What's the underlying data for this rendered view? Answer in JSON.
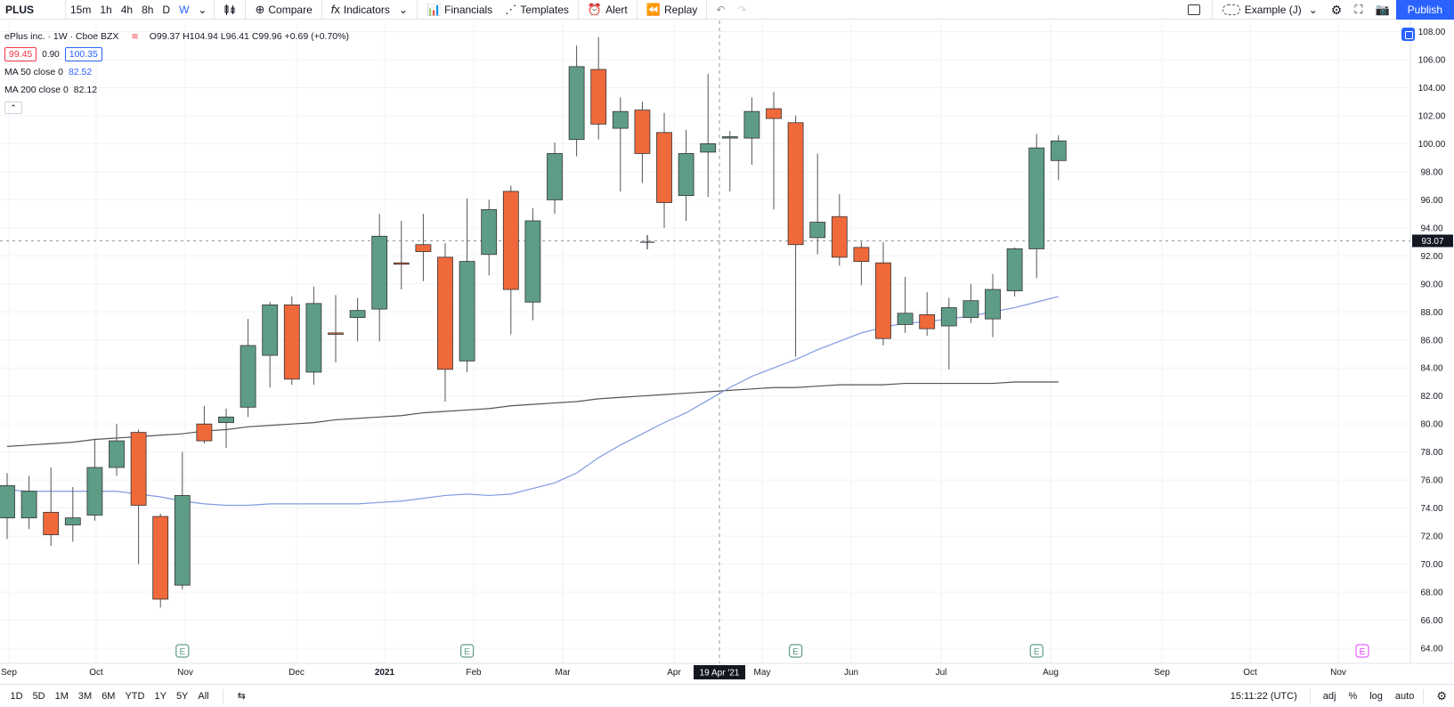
{
  "toolbar": {
    "symbol": "PLUS",
    "timeframes": [
      {
        "label": "15m",
        "active": false
      },
      {
        "label": "1h",
        "active": false
      },
      {
        "label": "4h",
        "active": false
      },
      {
        "label": "8h",
        "active": false
      },
      {
        "label": "D",
        "active": false
      },
      {
        "label": "W",
        "active": true
      }
    ],
    "compare_label": "Compare",
    "indicators_label": "Indicators",
    "financials_label": "Financials",
    "templates_label": "Templates",
    "alert_label": "Alert",
    "replay_label": "Replay",
    "layout_name": "Example (J)",
    "publish_label": "Publish"
  },
  "legend": {
    "title": "ePlus inc. · 1W · Cboe BZX",
    "ohlc_o": "O99.37",
    "ohlc_h": "H104.94",
    "ohlc_l": "L96.41",
    "ohlc_c": "C99.96",
    "change": "+0.69 (+0.70%)",
    "sell_price": "99.45",
    "spread": "0.90",
    "buy_price": "100.35",
    "ma50_label": "MA 50 close 0",
    "ma50_value": "82.52",
    "ma200_label": "MA 200 close 0",
    "ma200_value": "82.12",
    "collapse_icon": "chevron-up-icon"
  },
  "price_axis": {
    "labels": [
      "108.00",
      "106.00",
      "104.00",
      "102.00",
      "100.00",
      "98.00",
      "96.00",
      "94.00",
      "92.00",
      "90.00",
      "88.00",
      "86.00",
      "84.00",
      "82.00",
      "80.00",
      "78.00",
      "76.00",
      "74.00",
      "72.00",
      "70.00",
      "68.00",
      "66.00",
      "64.00"
    ],
    "current_price": "93.07"
  },
  "time_axis": {
    "labels": [
      "Sep",
      "Oct",
      "Nov",
      "Dec",
      "2021",
      "Feb",
      "Mar",
      "Apr",
      "May",
      "Jun",
      "Jul",
      "Aug",
      "Sep",
      "Oct",
      "Nov"
    ],
    "crosshair_label": "19 Apr '21"
  },
  "chart_data": {
    "type": "candlestick",
    "interval": "1W",
    "ylim": [
      64,
      108
    ],
    "up_color": "#5e9c86",
    "down_color": "#f0693b",
    "candles": [
      {
        "o": 73.3,
        "h": 76.5,
        "l": 71.8,
        "c": 75.6
      },
      {
        "o": 73.3,
        "h": 76.3,
        "l": 72.5,
        "c": 75.2
      },
      {
        "o": 73.7,
        "h": 76.9,
        "l": 71.3,
        "c": 72.1
      },
      {
        "o": 72.8,
        "h": 75.5,
        "l": 71.6,
        "c": 73.3
      },
      {
        "o": 73.5,
        "h": 78.9,
        "l": 73.1,
        "c": 76.9
      },
      {
        "o": 76.9,
        "h": 80.0,
        "l": 76.3,
        "c": 78.8
      },
      {
        "o": 79.4,
        "h": 79.6,
        "l": 70.0,
        "c": 74.2
      },
      {
        "o": 73.4,
        "h": 73.6,
        "l": 66.9,
        "c": 67.5
      },
      {
        "o": 68.5,
        "h": 78.0,
        "l": 68.2,
        "c": 74.9
      },
      {
        "o": 80.0,
        "h": 81.3,
        "l": 78.6,
        "c": 78.8
      },
      {
        "o": 80.1,
        "h": 81.1,
        "l": 78.3,
        "c": 80.5
      },
      {
        "o": 81.2,
        "h": 87.5,
        "l": 80.5,
        "c": 85.6
      },
      {
        "o": 84.9,
        "h": 88.7,
        "l": 82.6,
        "c": 88.5
      },
      {
        "o": 88.5,
        "h": 89.1,
        "l": 82.8,
        "c": 83.2
      },
      {
        "o": 83.7,
        "h": 89.8,
        "l": 82.8,
        "c": 88.6
      },
      {
        "o": 86.5,
        "h": 89.2,
        "l": 84.4,
        "c": 86.4
      },
      {
        "o": 87.6,
        "h": 89.0,
        "l": 85.9,
        "c": 88.1
      },
      {
        "o": 88.2,
        "h": 95.0,
        "l": 85.9,
        "c": 93.4
      },
      {
        "o": 91.5,
        "h": 94.5,
        "l": 89.6,
        "c": 91.4
      },
      {
        "o": 92.8,
        "h": 95.0,
        "l": 90.2,
        "c": 92.3
      },
      {
        "o": 91.9,
        "h": 92.9,
        "l": 81.6,
        "c": 83.9
      },
      {
        "o": 84.5,
        "h": 96.1,
        "l": 83.7,
        "c": 91.6
      },
      {
        "o": 92.1,
        "h": 96.0,
        "l": 90.6,
        "c": 95.3
      },
      {
        "o": 96.6,
        "h": 97.0,
        "l": 86.4,
        "c": 89.6
      },
      {
        "o": 88.7,
        "h": 95.4,
        "l": 87.4,
        "c": 94.5
      },
      {
        "o": 96.0,
        "h": 100.1,
        "l": 95.0,
        "c": 99.3
      },
      {
        "o": 100.3,
        "h": 107.0,
        "l": 99.1,
        "c": 105.5
      },
      {
        "o": 105.3,
        "h": 107.6,
        "l": 100.3,
        "c": 101.4
      },
      {
        "o": 101.1,
        "h": 103.3,
        "l": 96.6,
        "c": 102.3
      },
      {
        "o": 102.4,
        "h": 103.0,
        "l": 97.2,
        "c": 99.3
      },
      {
        "o": 100.8,
        "h": 102.2,
        "l": 94.0,
        "c": 95.8
      },
      {
        "o": 96.3,
        "h": 101.0,
        "l": 94.5,
        "c": 99.3
      },
      {
        "o": 99.4,
        "h": 105.0,
        "l": 96.2,
        "c": 100.0
      },
      {
        "o": 100.4,
        "h": 100.9,
        "l": 96.6,
        "c": 100.5
      },
      {
        "o": 100.4,
        "h": 103.3,
        "l": 98.5,
        "c": 102.3
      },
      {
        "o": 102.5,
        "h": 103.7,
        "l": 95.3,
        "c": 101.8
      },
      {
        "o": 101.5,
        "h": 102.0,
        "l": 84.8,
        "c": 92.8
      },
      {
        "o": 93.3,
        "h": 99.3,
        "l": 92.1,
        "c": 94.4
      },
      {
        "o": 94.8,
        "h": 96.4,
        "l": 91.3,
        "c": 91.9
      },
      {
        "o": 92.6,
        "h": 93.0,
        "l": 89.9,
        "c": 91.6
      },
      {
        "o": 91.5,
        "h": 93.0,
        "l": 85.6,
        "c": 86.1
      },
      {
        "o": 87.1,
        "h": 90.5,
        "l": 86.5,
        "c": 87.9
      },
      {
        "o": 87.8,
        "h": 89.4,
        "l": 86.3,
        "c": 86.8
      },
      {
        "o": 87.0,
        "h": 89.0,
        "l": 83.9,
        "c": 88.3
      },
      {
        "o": 87.6,
        "h": 90.0,
        "l": 87.2,
        "c": 88.8
      },
      {
        "o": 87.5,
        "h": 90.7,
        "l": 86.2,
        "c": 89.6
      },
      {
        "o": 89.5,
        "h": 92.6,
        "l": 89.1,
        "c": 92.5
      },
      {
        "o": 92.5,
        "h": 100.7,
        "l": 90.4,
        "c": 99.7
      },
      {
        "o": 98.8,
        "h": 100.6,
        "l": 97.4,
        "c": 100.2
      }
    ],
    "ma50": [
      75.3,
      75.2,
      75.2,
      75.2,
      75.2,
      75.2,
      75.0,
      74.8,
      74.5,
      74.3,
      74.2,
      74.2,
      74.3,
      74.3,
      74.3,
      74.3,
      74.3,
      74.4,
      74.5,
      74.7,
      74.9,
      75.0,
      74.9,
      75.0,
      75.4,
      75.8,
      76.5,
      77.6,
      78.5,
      79.3,
      80.1,
      80.8,
      81.7,
      82.6,
      83.4,
      84.0,
      84.6,
      85.3,
      85.9,
      86.5,
      86.9,
      87.2,
      87.3,
      87.5,
      87.7,
      88.0,
      88.3,
      88.7,
      89.1
    ],
    "ma200": [
      78.4,
      78.5,
      78.6,
      78.7,
      78.9,
      79.0,
      79.1,
      79.2,
      79.3,
      79.5,
      79.6,
      79.8,
      79.9,
      80.0,
      80.1,
      80.3,
      80.4,
      80.5,
      80.6,
      80.8,
      80.9,
      81.0,
      81.1,
      81.3,
      81.4,
      81.5,
      81.6,
      81.8,
      81.9,
      82.0,
      82.1,
      82.2,
      82.3,
      82.4,
      82.5,
      82.6,
      82.6,
      82.7,
      82.8,
      82.8,
      82.8,
      82.9,
      82.9,
      82.9,
      82.9,
      82.9,
      83.0,
      83.0,
      83.0
    ],
    "ma50_color": "#7f9be0",
    "ma200_color": "#555555",
    "earnings_markers": [
      8,
      21,
      36,
      47
    ]
  },
  "bottombar": {
    "ranges": [
      "1D",
      "5D",
      "1M",
      "3M",
      "6M",
      "YTD",
      "1Y",
      "5Y",
      "All"
    ],
    "clock": "15:11:22 (UTC)",
    "adj_label": "adj",
    "percent_label": "%",
    "log_label": "log",
    "auto_label": "auto"
  }
}
